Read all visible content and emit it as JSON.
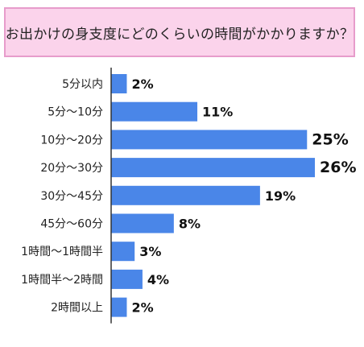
{
  "title": "お出かけの身支度にどのくらいの時間がかかりますか？",
  "colors": {
    "bar": "#4a86e8",
    "title_bg": "#fbd3eb",
    "title_border": "#e79ccb",
    "axis": "#333333"
  },
  "chart_data": {
    "type": "bar",
    "orientation": "horizontal",
    "categories": [
      "5分以内",
      "5分～10分",
      "10分～20分",
      "20分～30分",
      "30分～45分",
      "45分～60分",
      "1時間～1時間半",
      "1時間半～2時間",
      "2時間以上"
    ],
    "values": [
      2,
      11,
      25,
      26,
      19,
      8,
      3,
      4,
      2
    ],
    "value_labels": [
      "2%",
      "11%",
      "25%",
      "26%",
      "19%",
      "8%",
      "3%",
      "4%",
      "2%"
    ],
    "grid": false,
    "legend": "none"
  }
}
